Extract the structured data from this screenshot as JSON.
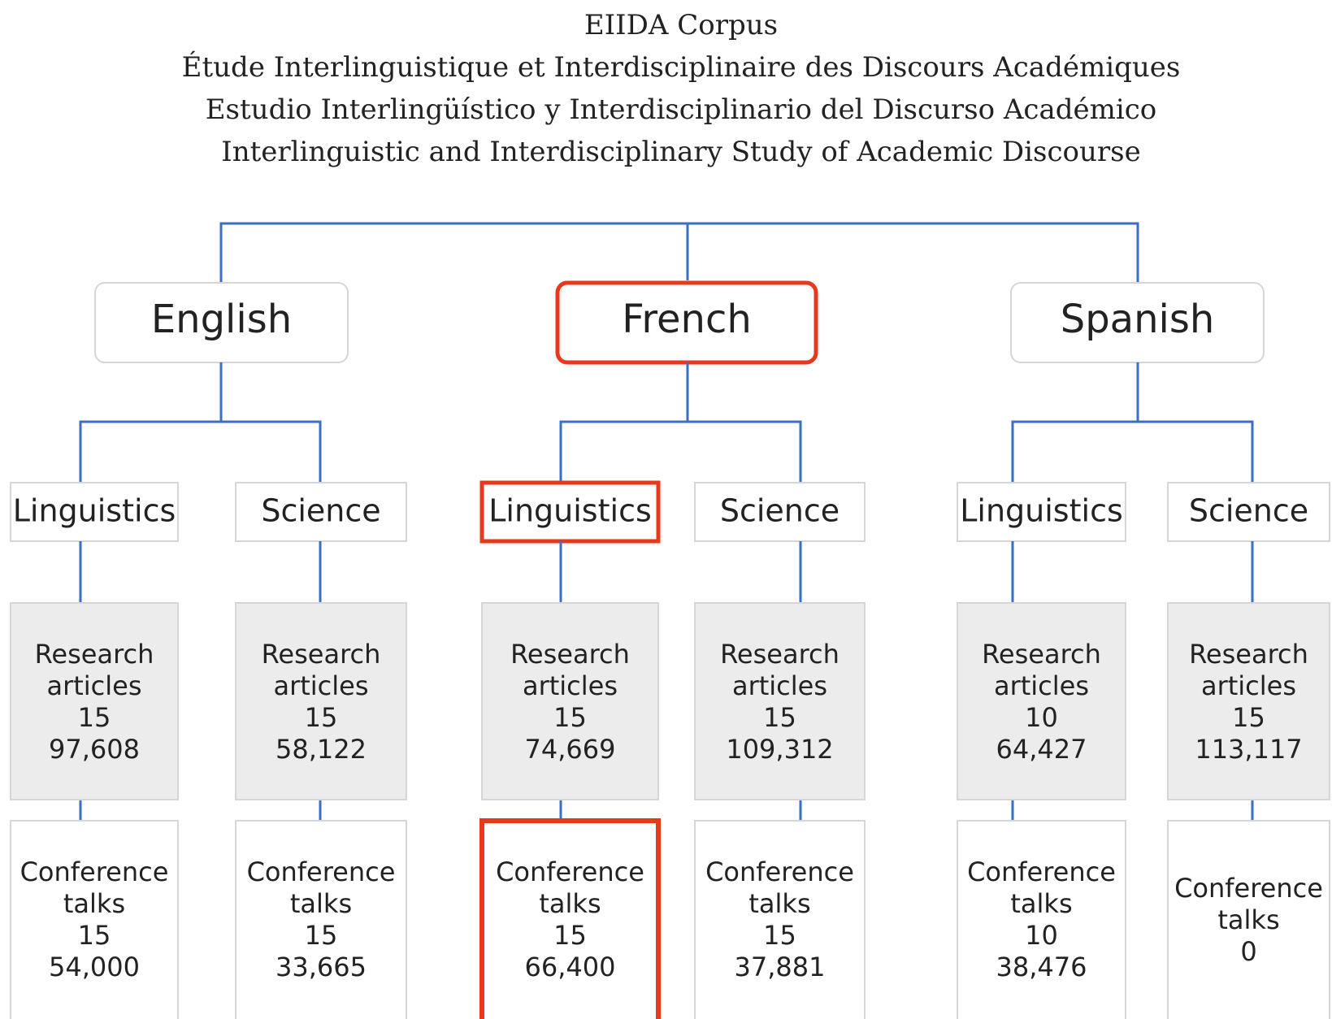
{
  "title_lines": [
    "EIIDA Corpus",
    "Étude Interlinguistique et Interdisciplinaire des Discours Académiques",
    "Estudio Interlingüístico y Interdisciplinario del Discurso Académico",
    "Interlinguistic and Interdisciplinary Study of Academic Discourse"
  ],
  "languages": [
    {
      "name": "English",
      "highlighted": false,
      "disciplines": [
        {
          "name": "Linguistics",
          "highlighted": false,
          "research": {
            "label_lines": [
              "Research",
              "articles"
            ],
            "count": "15",
            "words": "97,608"
          },
          "conference": {
            "label_lines": [
              "Conference",
              "talks"
            ],
            "count": "15",
            "words": "54,000",
            "highlighted": false
          }
        },
        {
          "name": "Science",
          "highlighted": false,
          "research": {
            "label_lines": [
              "Research",
              "articles"
            ],
            "count": "15",
            "words": "58,122"
          },
          "conference": {
            "label_lines": [
              "Conference",
              "talks"
            ],
            "count": "15",
            "words": "33,665",
            "highlighted": false
          }
        }
      ]
    },
    {
      "name": "French",
      "highlighted": true,
      "disciplines": [
        {
          "name": "Linguistics",
          "highlighted": true,
          "research": {
            "label_lines": [
              "Research",
              "articles"
            ],
            "count": "15",
            "words": "74,669"
          },
          "conference": {
            "label_lines": [
              "Conference",
              "talks"
            ],
            "count": "15",
            "words": "66,400",
            "highlighted": true
          }
        },
        {
          "name": "Science",
          "highlighted": false,
          "research": {
            "label_lines": [
              "Research",
              "articles"
            ],
            "count": "15",
            "words": "109,312"
          },
          "conference": {
            "label_lines": [
              "Conference",
              "talks"
            ],
            "count": "15",
            "words": "37,881",
            "highlighted": false
          }
        }
      ]
    },
    {
      "name": "Spanish",
      "highlighted": false,
      "disciplines": [
        {
          "name": "Linguistics",
          "highlighted": false,
          "research": {
            "label_lines": [
              "Research",
              "articles"
            ],
            "count": "10",
            "words": "64,427"
          },
          "conference": {
            "label_lines": [
              "Conference",
              "talks"
            ],
            "count": "10",
            "words": "38,476",
            "highlighted": false
          }
        },
        {
          "name": "Science",
          "highlighted": false,
          "research": {
            "label_lines": [
              "Research",
              "articles"
            ],
            "count": "15",
            "words": "113,117"
          },
          "conference": {
            "label_lines": [
              "Conference",
              "talks"
            ],
            "count": "0",
            "highlighted": false
          }
        }
      ]
    }
  ]
}
